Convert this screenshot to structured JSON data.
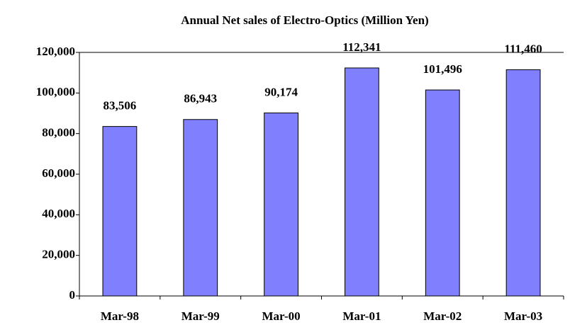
{
  "chart_data": {
    "type": "bar",
    "title": "Annual Net sales of Electro-Optics (Million Yen)",
    "categories": [
      "Mar-98",
      "Mar-99",
      "Mar-00",
      "Mar-01",
      "Mar-02",
      "Mar-03"
    ],
    "values": [
      83506,
      86943,
      90174,
      112341,
      101496,
      111460
    ],
    "value_labels": [
      "83,506",
      "86,943",
      "90,174",
      "112,341",
      "101,496",
      "111,460"
    ],
    "color": "#8080ff",
    "ylim": [
      0,
      120000
    ],
    "yticks": [
      0,
      {
        "value": 20000,
        "label": "20,000"
      },
      {
        "value": 40000,
        "label": "40,000"
      },
      {
        "value": 60000,
        "label": "60,000"
      },
      {
        "value": 80000,
        "label": "80,000"
      },
      {
        "value": 100000,
        "label": "100,000"
      },
      {
        "value": 120000,
        "label": "120,000"
      }
    ],
    "grid": false
  }
}
